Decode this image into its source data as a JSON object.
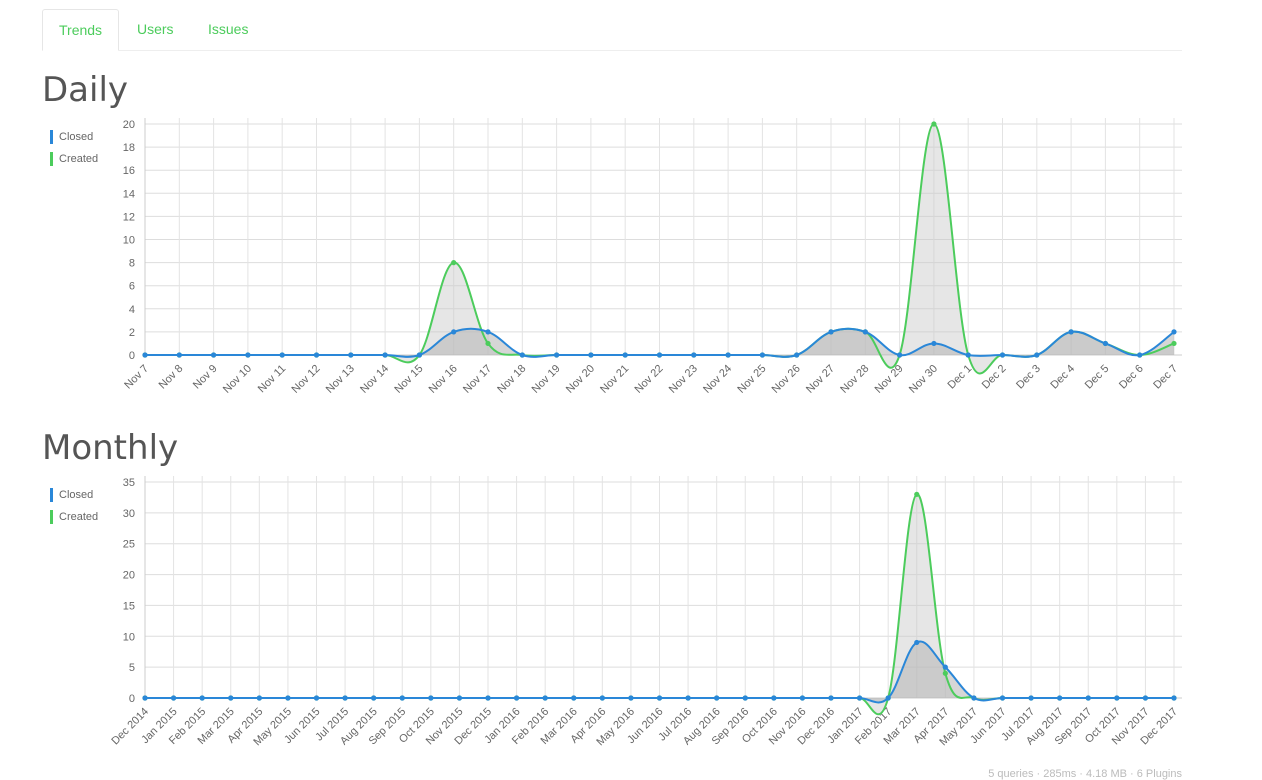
{
  "tabs": [
    {
      "label": "Trends",
      "active": true
    },
    {
      "label": "Users",
      "active": false
    },
    {
      "label": "Issues",
      "active": false
    }
  ],
  "colors": {
    "closed": "#2a87d8",
    "created": "#4ccc5c",
    "tab_text": "#4ccc5c",
    "fill": "#cccccc"
  },
  "legend": [
    {
      "name": "Closed",
      "color": "#2a87d8"
    },
    {
      "name": "Created",
      "color": "#4ccc5c"
    }
  ],
  "footer": "5 queries · 285ms · 4.18 MB · 6 Plugins",
  "chart_data": [
    {
      "type": "area",
      "title": "Daily",
      "categories": [
        "Nov 7",
        "Nov 8",
        "Nov 9",
        "Nov 10",
        "Nov 11",
        "Nov 12",
        "Nov 13",
        "Nov 14",
        "Nov 15",
        "Nov 16",
        "Nov 17",
        "Nov 18",
        "Nov 19",
        "Nov 20",
        "Nov 21",
        "Nov 22",
        "Nov 23",
        "Nov 24",
        "Nov 25",
        "Nov 26",
        "Nov 27",
        "Nov 28",
        "Nov 29",
        "Nov 30",
        "Dec 1",
        "Dec 2",
        "Dec 3",
        "Dec 4",
        "Dec 5",
        "Dec 6",
        "Dec 7"
      ],
      "ylim": [
        0,
        20
      ],
      "yticks": [
        0,
        2,
        4,
        6,
        8,
        10,
        12,
        14,
        16,
        18,
        20
      ],
      "grid": true,
      "legend_position": "left",
      "series": [
        {
          "name": "Closed",
          "values": [
            0,
            0,
            0,
            0,
            0,
            0,
            0,
            0,
            0,
            2,
            2,
            0,
            0,
            0,
            0,
            0,
            0,
            0,
            0,
            0,
            2,
            2,
            0,
            1,
            0,
            0,
            0,
            2,
            1,
            0,
            2
          ]
        },
        {
          "name": "Created",
          "values": [
            0,
            0,
            0,
            0,
            0,
            0,
            0,
            0,
            0,
            8,
            1,
            0,
            0,
            0,
            0,
            0,
            0,
            0,
            0,
            0,
            2,
            2,
            0,
            20,
            0,
            0,
            0,
            2,
            1,
            0,
            1
          ]
        }
      ]
    },
    {
      "type": "area",
      "title": "Monthly",
      "categories": [
        "Dec 2014",
        "Jan 2015",
        "Feb 2015",
        "Mar 2015",
        "Apr 2015",
        "May 2015",
        "Jun 2015",
        "Jul 2015",
        "Aug 2015",
        "Sep 2015",
        "Oct 2015",
        "Nov 2015",
        "Dec 2015",
        "Jan 2016",
        "Feb 2016",
        "Mar 2016",
        "Apr 2016",
        "May 2016",
        "Jun 2016",
        "Jul 2016",
        "Aug 2016",
        "Sep 2016",
        "Oct 2016",
        "Nov 2016",
        "Dec 2016",
        "Jan 2017",
        "Feb 2017",
        "Mar 2017",
        "Apr 2017",
        "May 2017",
        "Jun 2017",
        "Jul 2017",
        "Aug 2017",
        "Sep 2017",
        "Oct 2017",
        "Nov 2017",
        "Dec 2017"
      ],
      "ylim": [
        0,
        35
      ],
      "yticks": [
        0,
        5,
        10,
        15,
        20,
        25,
        30,
        35
      ],
      "grid": true,
      "legend_position": "left",
      "series": [
        {
          "name": "Closed",
          "values": [
            0,
            0,
            0,
            0,
            0,
            0,
            0,
            0,
            0,
            0,
            0,
            0,
            0,
            0,
            0,
            0,
            0,
            0,
            0,
            0,
            0,
            0,
            0,
            0,
            0,
            0,
            0,
            9,
            5,
            0,
            0,
            0,
            0,
            0,
            0,
            0,
            0
          ]
        },
        {
          "name": "Created",
          "values": [
            0,
            0,
            0,
            0,
            0,
            0,
            0,
            0,
            0,
            0,
            0,
            0,
            0,
            0,
            0,
            0,
            0,
            0,
            0,
            0,
            0,
            0,
            0,
            0,
            0,
            0,
            0,
            33,
            4,
            0,
            0,
            0,
            0,
            0,
            0,
            0,
            0
          ]
        }
      ]
    }
  ]
}
